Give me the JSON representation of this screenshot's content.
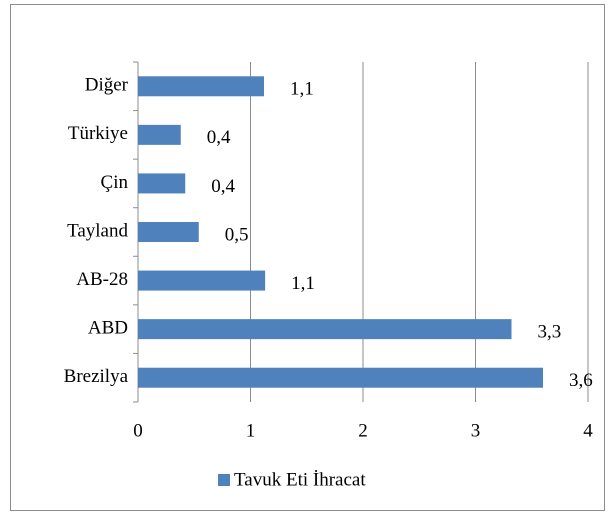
{
  "chart_data": {
    "type": "bar",
    "orientation": "horizontal",
    "categories": [
      "Diğer",
      "Türkiye",
      "Çin",
      "Tayland",
      "AB-28",
      "ABD",
      "Brezilya"
    ],
    "series": [
      {
        "name": "Tavuk Eti İhracat",
        "color": "#4f81bd",
        "values": [
          1.12,
          0.38,
          0.42,
          0.54,
          1.13,
          3.32,
          3.6
        ],
        "value_labels": [
          "1,1",
          "0,4",
          "0,4",
          "0,5",
          "1,1",
          "3,3",
          "3,6"
        ]
      }
    ],
    "xlim": [
      0,
      4
    ],
    "xticks": [
      0,
      1,
      2,
      3,
      4
    ],
    "grid": true,
    "legend": "bottom"
  }
}
